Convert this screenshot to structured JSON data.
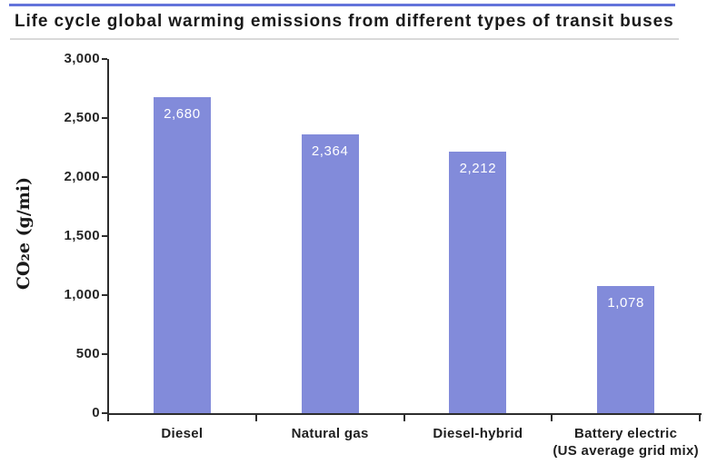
{
  "chart_data": {
    "type": "bar",
    "title": "Life cycle global warming emissions from different types of transit buses",
    "ylabel": "CO₂e (g/mi)",
    "xlabel": "",
    "categories": [
      "Diesel",
      "Natural gas",
      "Diesel-hybrid",
      "Battery electric (US average grid mix)"
    ],
    "category_lines": [
      [
        "Diesel"
      ],
      [
        "Natural gas"
      ],
      [
        "Diesel-hybrid"
      ],
      [
        "Battery electric",
        "(US average grid mix)"
      ]
    ],
    "values": [
      2680,
      2364,
      2212,
      1078
    ],
    "value_labels": [
      "2,680",
      "2,364",
      "2,212",
      "1,078"
    ],
    "ylim": [
      0,
      3000
    ],
    "ytick_interval": 500,
    "ytick_labels": [
      "0",
      "500",
      "1,000",
      "1,500",
      "2,000",
      "2,500",
      "3,000"
    ],
    "grid": false,
    "legend": "none",
    "bar_color": "#828BDA",
    "bar_value_label_color": "#ffffff"
  },
  "style": {
    "accent_line_color": "#6374DB",
    "divider_color": "#d9d9d9",
    "axis_color": "#2d2d2d",
    "title_color": "#1a1a1a",
    "background_color": "#ffffff"
  }
}
